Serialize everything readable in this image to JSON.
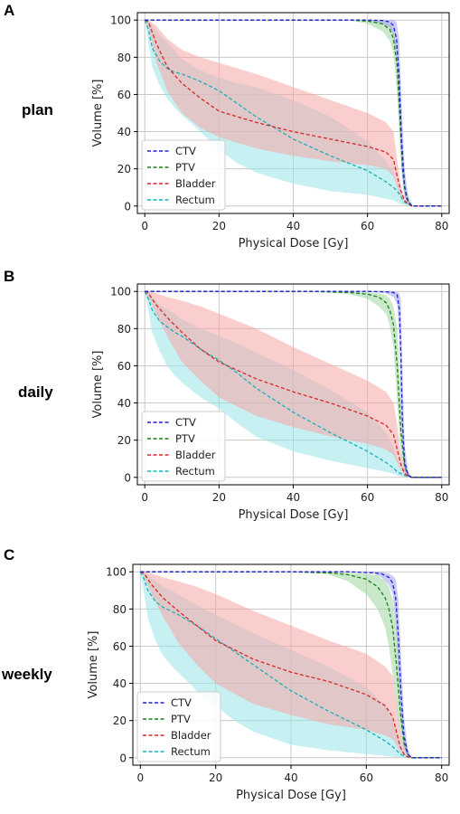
{
  "colors": {
    "CTV": "#1f1fd6",
    "PTV": "#1a7d1a",
    "Bladder": "#d62728",
    "Rectum": "#17b2b8",
    "CTV_band": "#9fa0f2",
    "PTV_band": "#9ed69e",
    "Bladder_band": "#f7a5a5",
    "Rectum_band": "#98e3e6"
  },
  "chart_data": [
    {
      "type": "line",
      "panel_letter": "A",
      "row_label": "plan",
      "xlabel": "Physical Dose [Gy]",
      "ylabel": "Volume [%]",
      "xlim": [
        -2,
        82
      ],
      "ylim": [
        -4,
        104
      ],
      "xticks": [
        0,
        20,
        40,
        60,
        80
      ],
      "yticks": [
        0,
        20,
        40,
        60,
        80,
        100
      ],
      "grid": true,
      "legend_position": "lower-left",
      "series": [
        {
          "name": "CTV",
          "style": "dashed",
          "x": [
            0,
            60,
            64,
            66,
            67,
            67.8,
            68.5,
            69.2,
            70,
            71,
            72,
            80
          ],
          "y": [
            100,
            100,
            99.8,
            99,
            97,
            90,
            70,
            35,
            10,
            2,
            0,
            0
          ],
          "upper": [
            100,
            100,
            100,
            100,
            100,
            99,
            90,
            55,
            20,
            5,
            0,
            0
          ],
          "lower": [
            100,
            100,
            98,
            96,
            92,
            80,
            50,
            20,
            5,
            1,
            0,
            0
          ]
        },
        {
          "name": "PTV",
          "style": "dashed",
          "x": [
            0,
            55,
            60,
            64,
            66,
            67,
            68,
            68.8,
            69.5,
            70.5,
            72,
            80
          ],
          "y": [
            100,
            100,
            99.5,
            98,
            95,
            90,
            75,
            45,
            18,
            4,
            0,
            0
          ],
          "upper": [
            100,
            100,
            100,
            99.5,
            98,
            95,
            85,
            60,
            30,
            8,
            0,
            0
          ],
          "lower": [
            100,
            100,
            98,
            94,
            89,
            82,
            60,
            30,
            10,
            2,
            0,
            0
          ]
        },
        {
          "name": "Bladder",
          "style": "dashed",
          "x": [
            0,
            1,
            3,
            6,
            10,
            15,
            20,
            30,
            40,
            50,
            60,
            65,
            67,
            68,
            69,
            70,
            71,
            72,
            80
          ],
          "y": [
            100,
            99,
            88,
            75,
            66,
            58,
            51,
            45,
            40,
            36,
            32,
            29,
            25,
            16,
            8,
            3,
            1,
            0,
            0
          ],
          "upper": [
            100,
            100,
            97,
            90,
            84,
            80,
            77,
            71,
            64,
            57,
            50,
            45,
            40,
            25,
            10,
            4,
            1,
            0,
            0
          ],
          "lower": [
            100,
            96,
            78,
            62,
            50,
            42,
            37,
            31,
            27,
            24,
            22,
            20,
            16,
            10,
            5,
            2,
            0.5,
            0,
            0
          ]
        },
        {
          "name": "Rectum",
          "style": "dashed",
          "x": [
            0,
            1,
            2,
            4,
            6,
            8,
            10,
            15,
            20,
            25,
            30,
            40,
            50,
            60,
            65,
            67,
            68,
            69,
            70,
            71,
            72,
            80
          ],
          "y": [
            100,
            95,
            85,
            78,
            74,
            72,
            71,
            67,
            62,
            55,
            48,
            36,
            27,
            19,
            13,
            10,
            8,
            5,
            2,
            1,
            0,
            0
          ],
          "upper": [
            100,
            100,
            97,
            92,
            88,
            84,
            79,
            73,
            69,
            66,
            64,
            57,
            48,
            35,
            24,
            18,
            12,
            7,
            3,
            1,
            0,
            0
          ],
          "lower": [
            100,
            88,
            75,
            65,
            58,
            53,
            49,
            40,
            30,
            23,
            18,
            12,
            8,
            6,
            4,
            3,
            2,
            1,
            0.5,
            0,
            0,
            0
          ]
        }
      ]
    },
    {
      "type": "line",
      "panel_letter": "B",
      "row_label": "daily",
      "xlabel": "Physical Dose [Gy]",
      "ylabel": "Volume [%]",
      "xlim": [
        -2,
        82
      ],
      "ylim": [
        -4,
        104
      ],
      "xticks": [
        0,
        20,
        40,
        60,
        80
      ],
      "yticks": [
        0,
        20,
        40,
        60,
        80,
        100
      ],
      "grid": true,
      "legend_position": "lower-left",
      "series": [
        {
          "name": "CTV",
          "style": "dashed",
          "x": [
            0,
            60,
            65,
            67,
            68,
            68.6,
            69,
            69.4,
            70,
            71,
            72,
            80
          ],
          "y": [
            100,
            100,
            99.8,
            99.5,
            98,
            90,
            65,
            30,
            8,
            1,
            0,
            0
          ],
          "upper": [
            100,
            100,
            100,
            100,
            99.5,
            99,
            95,
            60,
            18,
            3,
            0,
            0
          ],
          "lower": [
            100,
            100,
            99,
            97,
            93,
            75,
            40,
            15,
            3,
            0.5,
            0,
            0
          ]
        },
        {
          "name": "PTV",
          "style": "dashed",
          "x": [
            0,
            45,
            55,
            60,
            63,
            65,
            66,
            67,
            68,
            69,
            70,
            71,
            72,
            80
          ],
          "y": [
            100,
            100,
            99.5,
            98.5,
            97,
            94,
            90,
            82,
            60,
            25,
            6,
            1,
            0,
            0
          ],
          "upper": [
            100,
            100,
            100,
            99.5,
            99,
            98,
            96,
            92,
            80,
            45,
            12,
            2,
            0,
            0
          ],
          "lower": [
            100,
            100,
            98.5,
            96,
            92,
            88,
            82,
            70,
            40,
            12,
            3,
            0.5,
            0,
            0
          ]
        },
        {
          "name": "Bladder",
          "style": "dashed",
          "x": [
            0,
            1,
            3,
            6,
            10,
            15,
            20,
            30,
            40,
            50,
            60,
            65,
            67,
            68,
            69,
            70,
            71,
            72,
            80
          ],
          "y": [
            100,
            99,
            93,
            86,
            78,
            69,
            62,
            53,
            46,
            40,
            33,
            28,
            23,
            15,
            7,
            2,
            0.5,
            0,
            0
          ],
          "upper": [
            100,
            100,
            99,
            97,
            95,
            92,
            88,
            80,
            70,
            61,
            52,
            46,
            40,
            28,
            12,
            4,
            1,
            0,
            0
          ],
          "lower": [
            100,
            97,
            88,
            76,
            62,
            52,
            43,
            33,
            27,
            22,
            18,
            15,
            12,
            8,
            4,
            1,
            0,
            0,
            0
          ]
        },
        {
          "name": "Rectum",
          "style": "dashed",
          "x": [
            0,
            1,
            2,
            4,
            6,
            8,
            10,
            15,
            20,
            25,
            30,
            40,
            50,
            60,
            65,
            67,
            68,
            69,
            70,
            71,
            72,
            80
          ],
          "y": [
            100,
            96,
            90,
            84,
            81,
            78,
            76,
            69,
            63,
            56,
            48,
            35,
            24,
            14,
            8,
            5,
            3,
            2,
            1,
            0.5,
            0,
            0
          ],
          "upper": [
            100,
            100,
            97,
            93,
            90,
            88,
            85,
            80,
            76,
            72,
            67,
            58,
            47,
            35,
            24,
            16,
            10,
            5,
            2,
            1,
            0,
            0
          ],
          "lower": [
            100,
            90,
            78,
            68,
            60,
            55,
            51,
            43,
            37,
            29,
            22,
            14,
            9,
            5,
            3,
            2,
            1,
            0.5,
            0,
            0,
            0,
            0
          ]
        }
      ]
    },
    {
      "type": "line",
      "panel_letter": "C",
      "row_label": "weekly",
      "xlabel": "Physical Dose [Gy]",
      "ylabel": "Volume [%]",
      "xlim": [
        -2,
        82
      ],
      "ylim": [
        -4,
        104
      ],
      "xticks": [
        0,
        20,
        40,
        60,
        80
      ],
      "yticks": [
        0,
        20,
        40,
        60,
        80,
        100
      ],
      "grid": true,
      "legend_position": "lower-left",
      "series": [
        {
          "name": "CTV",
          "style": "dashed",
          "x": [
            0,
            55,
            62,
            64,
            66,
            67,
            67.8,
            68.5,
            69.2,
            70,
            71,
            72,
            80
          ],
          "y": [
            100,
            100,
            99.5,
            99,
            97,
            94,
            86,
            65,
            35,
            12,
            2,
            0,
            0
          ],
          "upper": [
            100,
            100,
            100,
            100,
            99,
            98,
            96,
            85,
            55,
            22,
            5,
            0,
            0
          ],
          "lower": [
            100,
            100,
            99,
            97,
            93,
            88,
            72,
            45,
            18,
            5,
            1,
            0,
            0
          ]
        },
        {
          "name": "PTV",
          "style": "dashed",
          "x": [
            0,
            40,
            50,
            55,
            60,
            63,
            65,
            66,
            67,
            68,
            69,
            70,
            71,
            72,
            80
          ],
          "y": [
            100,
            100,
            99.5,
            98.5,
            96,
            92,
            86,
            80,
            70,
            50,
            25,
            8,
            2,
            0,
            0
          ],
          "upper": [
            100,
            100,
            100,
            99.5,
            99,
            98,
            95,
            92,
            85,
            70,
            40,
            14,
            3,
            0,
            0
          ],
          "lower": [
            100,
            100,
            98.5,
            95,
            88,
            80,
            70,
            60,
            45,
            28,
            12,
            4,
            1,
            0,
            0
          ]
        },
        {
          "name": "Bladder",
          "style": "dashed",
          "x": [
            0,
            1,
            3,
            6,
            10,
            15,
            20,
            30,
            40,
            50,
            60,
            65,
            67,
            68,
            69,
            70,
            71,
            72,
            80
          ],
          "y": [
            100,
            99,
            93,
            86,
            79,
            71,
            63,
            53,
            46,
            41,
            34,
            28,
            22,
            14,
            6,
            2,
            0.5,
            0,
            0
          ],
          "upper": [
            100,
            100,
            99,
            97,
            95,
            92,
            88,
            79,
            71,
            63,
            56,
            49,
            44,
            30,
            14,
            5,
            1,
            0,
            0
          ],
          "lower": [
            100,
            97,
            88,
            76,
            62,
            50,
            40,
            29,
            23,
            18,
            15,
            12,
            10,
            7,
            3,
            1,
            0,
            0,
            0
          ]
        },
        {
          "name": "Rectum",
          "style": "dashed",
          "x": [
            0,
            1,
            2,
            4,
            6,
            8,
            10,
            15,
            20,
            25,
            30,
            40,
            50,
            60,
            65,
            67,
            68,
            69,
            70,
            71,
            72,
            80
          ],
          "y": [
            100,
            96,
            90,
            84,
            81,
            79,
            77,
            71,
            64,
            57,
            50,
            36,
            25,
            15,
            9,
            6,
            4,
            2,
            1,
            0.5,
            0,
            0
          ],
          "upper": [
            100,
            100,
            98,
            95,
            92,
            90,
            88,
            82,
            77,
            72,
            67,
            58,
            49,
            38,
            28,
            20,
            14,
            7,
            3,
            1,
            0,
            0
          ],
          "lower": [
            100,
            88,
            75,
            63,
            55,
            50,
            46,
            36,
            28,
            20,
            14,
            7,
            4,
            2,
            1,
            0.5,
            0.3,
            0,
            0,
            0,
            0,
            0
          ]
        }
      ]
    }
  ]
}
